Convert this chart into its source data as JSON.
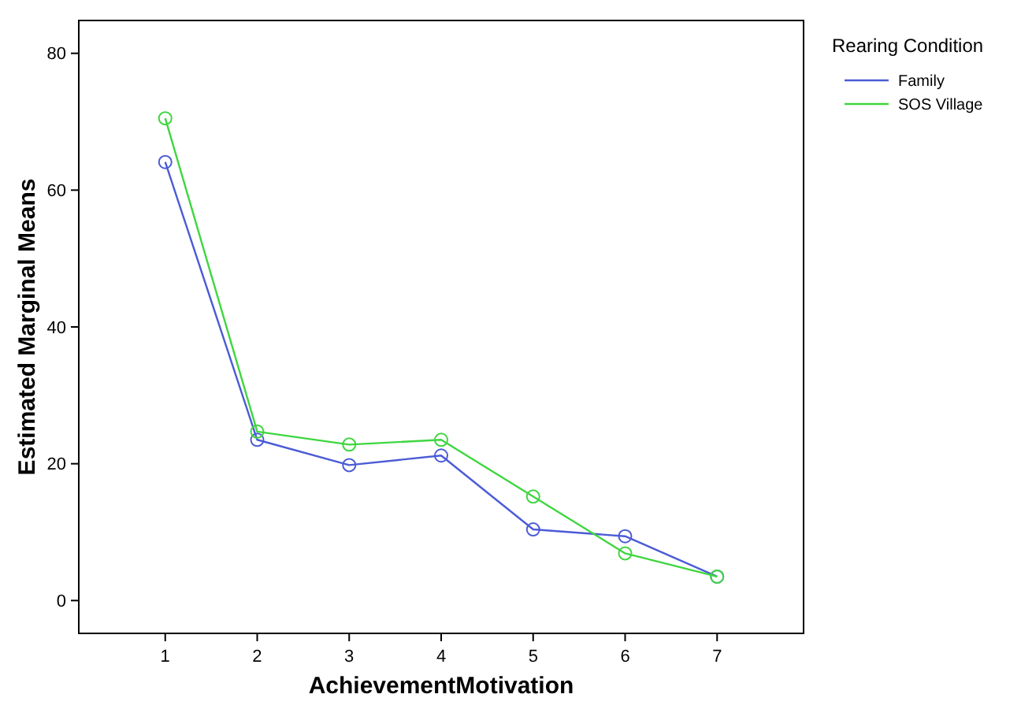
{
  "chart_data": {
    "type": "line",
    "xlabel": "AchievementMotivation",
    "ylabel": "Estimated Marginal Means",
    "legend_title": "Rearing Condition",
    "legend": "right",
    "marker": "circle",
    "grid": false,
    "categories": [
      "1",
      "2",
      "3",
      "4",
      "5",
      "6",
      "7"
    ],
    "ylim": [
      -4.8,
      84.8
    ],
    "yticks": [
      0,
      20,
      40,
      60,
      80
    ],
    "series": [
      {
        "name": "Family",
        "color": "#4b5bd6",
        "values": [
          64.1,
          23.5,
          19.8,
          21.2,
          10.4,
          9.4,
          3.5
        ]
      },
      {
        "name": "SOS Village",
        "color": "#3fd63f",
        "values": [
          70.5,
          24.7,
          22.8,
          23.5,
          15.2,
          6.9,
          3.5
        ]
      }
    ]
  }
}
